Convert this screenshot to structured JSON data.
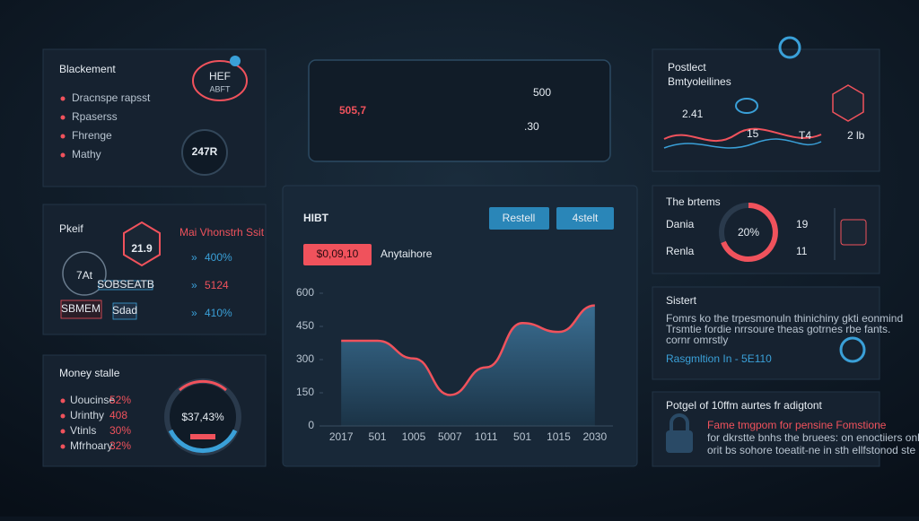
{
  "top_left": {
    "title": "Blackement",
    "items": [
      "Dracnspe rapsst",
      "Rpaserss",
      "Fhrenge",
      "Mathy"
    ],
    "gauge_top": "HEF",
    "gauge_sub": "ABFT",
    "gauge_bottom": "247R"
  },
  "mid_left": {
    "title": "Pkeif",
    "hex": "21.9",
    "circle": "7At",
    "chip_a": "SOBSEATB",
    "chip_b": "SBMEM",
    "chip_c": "Sdad",
    "heading": "Mai Vhonstrh Ssit",
    "values": [
      "400%",
      "5124",
      "410%"
    ]
  },
  "bottom_left": {
    "title": "Money stalle",
    "items": [
      {
        "label": "Uoucinse",
        "value": "52%"
      },
      {
        "label": "Urinthy",
        "value": "408"
      },
      {
        "label": "Vtinls",
        "value": "30%"
      },
      {
        "label": "Mfrhoary",
        "value": "32%"
      }
    ],
    "ring": "$37,43%"
  },
  "hero": {
    "main": "505,7",
    "top": "500",
    "bottom": ".30"
  },
  "main_panel": {
    "title": "HIBT",
    "button_a": "Restell",
    "button_b": "4stelt",
    "badge": "$0,09,10",
    "caption": "Anytaihore",
    "chart": {
      "type": "area",
      "categories": [
        "2017",
        "501",
        "1005",
        "5007",
        "1011",
        "501",
        "1015",
        "2030"
      ],
      "values": [
        385,
        385,
        305,
        140,
        265,
        465,
        425,
        545
      ],
      "ylim": [
        0,
        600
      ],
      "yticks": [
        0,
        150,
        300,
        450,
        600
      ]
    }
  },
  "top_right": {
    "title": "Postlect",
    "subtitle": "Bmtyoleilines",
    "stats": [
      "2.41",
      "15",
      "T4",
      "2 lb"
    ]
  },
  "mid_right": {
    "title": "The brtems",
    "rows": [
      {
        "label": "Dania",
        "value": "19"
      },
      {
        "label": "Renla",
        "value": "11"
      }
    ],
    "donut": "20%"
  },
  "info": {
    "title": "Sistert",
    "lines": [
      "Fomrs ko the trpesmonuln thinichiny gkti eonmind",
      "Trsmtie fordie nrrsoure theas gotrnes rbe fants.",
      "cornr omrstly"
    ],
    "link": "Rasgmltion In - 5E110"
  },
  "notice": {
    "title": "Potgel of 10ffm aurtes fr adigtont",
    "lines": [
      "Fame tmgpom for pensine Fomstione",
      "for dkrstte bnhs the bruees: on enoctiiers onli",
      "orit bs sohore toeatit-ne in sth ellfstonod ste"
    ]
  }
}
